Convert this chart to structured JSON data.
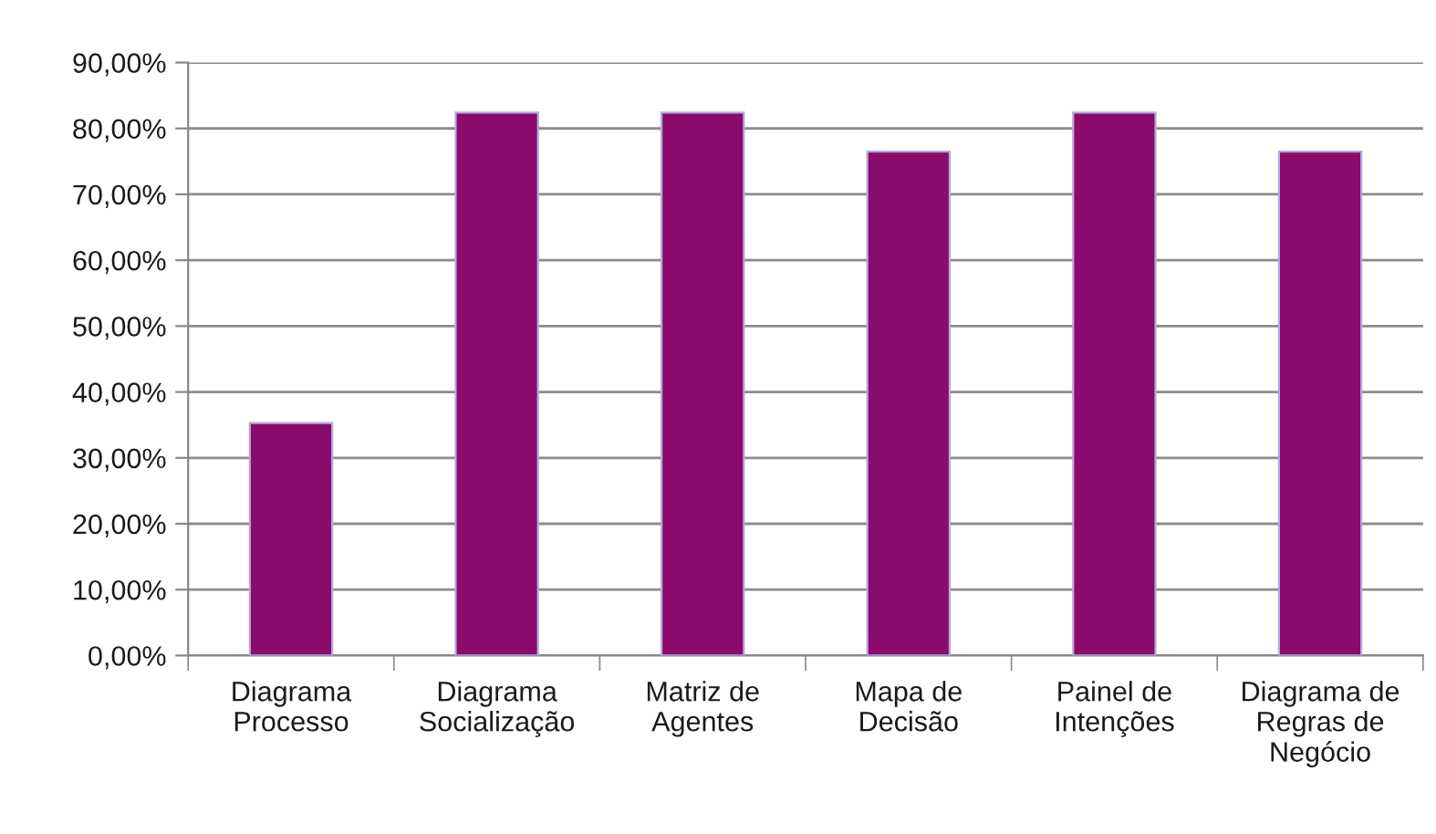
{
  "chart_data": {
    "type": "bar",
    "categories": [
      "Diagrama\nProcesso",
      "Diagrama\nSocialização",
      "Matriz de\nAgentes",
      "Mapa de\nDecisão",
      "Painel de\nIntenções",
      "Diagrama de\nRegras de\nNegócio"
    ],
    "values": [
      35.3,
      82.4,
      82.4,
      76.5,
      82.4,
      76.5
    ],
    "color": "#8a0a6e",
    "ylim": [
      0,
      90
    ],
    "yticks": [
      {
        "value": 0,
        "label": "0,00%"
      },
      {
        "value": 10,
        "label": "10,00%"
      },
      {
        "value": 20,
        "label": "20,00%"
      },
      {
        "value": 30,
        "label": "30,00%"
      },
      {
        "value": 40,
        "label": "40,00%"
      },
      {
        "value": 50,
        "label": "50,00%"
      },
      {
        "value": 60,
        "label": "60,00%"
      },
      {
        "value": 70,
        "label": "70,00%"
      },
      {
        "value": 80,
        "label": "80,00%"
      },
      {
        "value": 90,
        "label": "90,00%"
      }
    ],
    "grid": "y",
    "legend": false
  }
}
